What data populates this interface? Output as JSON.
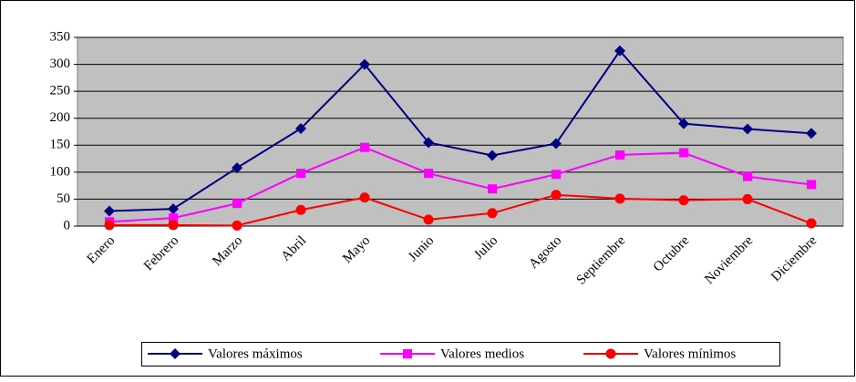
{
  "chart_data": {
    "type": "line",
    "categories": [
      "Enero",
      "Febrero",
      "Marzo",
      "Abril",
      "Mayo",
      "Junio",
      "Julio",
      "Agosto",
      "Septiembre",
      "Octubre",
      "Noviembre",
      "Diciembre"
    ],
    "series": [
      {
        "name": "Valores máximos",
        "color": "#000080",
        "marker": "diamond",
        "values": [
          28,
          32,
          108,
          181,
          300,
          155,
          131,
          153,
          325,
          190,
          180,
          172
        ]
      },
      {
        "name": "Valores medios",
        "color": "#ff00ff",
        "marker": "square",
        "values": [
          8,
          15,
          42,
          98,
          146,
          98,
          69,
          96,
          132,
          136,
          92,
          77
        ]
      },
      {
        "name": "Valores mínimos",
        "color": "#ff0000",
        "marker": "circle",
        "values": [
          2,
          2,
          1,
          30,
          53,
          12,
          24,
          58,
          51,
          48,
          50,
          5
        ]
      }
    ],
    "ylim": [
      0,
      350
    ],
    "yticks": [
      0,
      50,
      100,
      150,
      200,
      250,
      300,
      350
    ],
    "grid": true,
    "legend": "bottom"
  }
}
